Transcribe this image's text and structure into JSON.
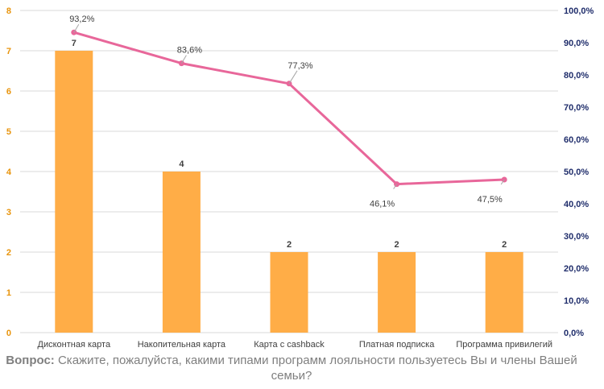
{
  "chart_data": {
    "type": "bar",
    "categories": [
      "Дисконтная карта",
      "Накопительная карта",
      "Карта с cashback",
      "Платная подписка",
      "Программа привилегий"
    ],
    "series": [
      {
        "type": "bar",
        "values": [
          7,
          4,
          2,
          2,
          2
        ],
        "axis": "left"
      },
      {
        "type": "line",
        "values": [
          93.2,
          83.6,
          77.3,
          46.1,
          47.5
        ],
        "axis": "right"
      }
    ],
    "bar_labels": [
      "7",
      "4",
      "2",
      "2",
      "2"
    ],
    "line_labels": [
      "93,2%",
      "83,6%",
      "77,3%",
      "46,1%",
      "47,5%"
    ],
    "ylim": [
      0,
      8
    ],
    "y2lim": [
      0,
      100
    ],
    "yticks": [
      "0",
      "1",
      "2",
      "3",
      "4",
      "5",
      "6",
      "7",
      "8"
    ],
    "y2ticks": [
      "0,0%",
      "10,0%",
      "20,0%",
      "30,0%",
      "40,0%",
      "50,0%",
      "60,0%",
      "70,0%",
      "80,0%",
      "90,0%",
      "100,0%"
    ],
    "grid": true,
    "colors": {
      "bar": "#ffad47",
      "line": "#e8679a",
      "left_axis": "#e8940c",
      "right_axis": "#1f2d6b",
      "label": "#404040",
      "grid": "#d9d9d9"
    }
  },
  "caption": {
    "bold": "Вопрос:",
    "text": "Скажите, пожалуйста, какими типами программ лояльности пользуетесь Вы и члены Вашей семьи?"
  }
}
